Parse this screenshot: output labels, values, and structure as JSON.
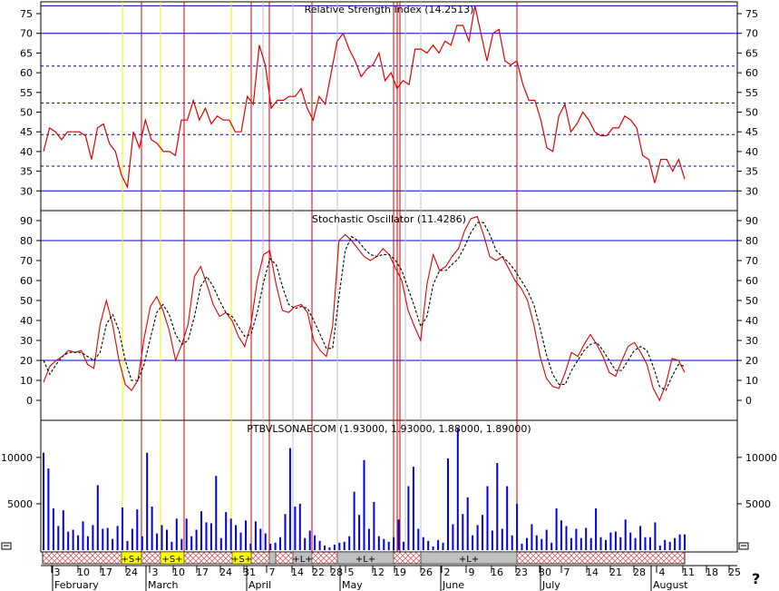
{
  "chart_data": [
    {
      "type": "line",
      "title": "Relative Strength Index (14.2513)",
      "ylim": [
        25,
        78
      ],
      "yticks": [
        30,
        35,
        40,
        45,
        50,
        55,
        60,
        65,
        70,
        75
      ],
      "reference_lines": {
        "solid": [
          77,
          70,
          30
        ],
        "dashed": [
          61.7,
          52.3,
          44.3,
          36.3
        ]
      },
      "series": [
        {
          "values": [
            40,
            46,
            45,
            43,
            45,
            45,
            45,
            44,
            38,
            46,
            47,
            42,
            40,
            34,
            31,
            45,
            41,
            48,
            43,
            42,
            40,
            40,
            39,
            48,
            48,
            53,
            48,
            51,
            47,
            49,
            48,
            48,
            45,
            45,
            54,
            52,
            67,
            62,
            51,
            53,
            53,
            54,
            54,
            56,
            51,
            48,
            54,
            52,
            60,
            68,
            70,
            66,
            63,
            59,
            61,
            62,
            65,
            58,
            60,
            56,
            58,
            57,
            66,
            66,
            65,
            67,
            65,
            68,
            67,
            72,
            72,
            68,
            77,
            70,
            63,
            70,
            71,
            63,
            62,
            63,
            57,
            53,
            53,
            48,
            41,
            40,
            49,
            52,
            45,
            47,
            50,
            48,
            45,
            44,
            44,
            46,
            46,
            49,
            48,
            46,
            39,
            38,
            32,
            38,
            38,
            35,
            38,
            33
          ]
        }
      ]
    },
    {
      "type": "line",
      "title": "Stochastic Oscillator (11.4286)",
      "ylim": [
        -10,
        95
      ],
      "yticks": [
        0,
        10,
        20,
        30,
        40,
        50,
        60,
        70,
        80,
        90
      ],
      "reference_lines": {
        "solid": [
          80,
          20
        ]
      },
      "series": [
        {
          "values": [
            9,
            17,
            20,
            22,
            25,
            24,
            25,
            18,
            16,
            38,
            50,
            38,
            20,
            8,
            5,
            10,
            31,
            47,
            52,
            45,
            35,
            20,
            28,
            38,
            62,
            67,
            58,
            48,
            42,
            44,
            40,
            32,
            27,
            38,
            60,
            73,
            75,
            58,
            45,
            44,
            47,
            48,
            44,
            30,
            25,
            22,
            37,
            80,
            83,
            80,
            76,
            72,
            70,
            72,
            76,
            73,
            66,
            60,
            45,
            37,
            30,
            58,
            73,
            65,
            67,
            72,
            76,
            85,
            91,
            92,
            83,
            72,
            70,
            72,
            66,
            60,
            56,
            50,
            38,
            22,
            11,
            7,
            6,
            14,
            24,
            22,
            28,
            33,
            28,
            22,
            14,
            12,
            20,
            27,
            29,
            24,
            18,
            6,
            0,
            8,
            21,
            20,
            14
          ]
        },
        {
          "values": [
            20,
            13,
            18,
            22,
            24,
            24,
            24,
            22,
            20,
            24,
            38,
            43,
            35,
            20,
            10,
            10,
            18,
            31,
            44,
            48,
            43,
            33,
            28,
            30,
            42,
            57,
            62,
            57,
            50,
            44,
            42,
            37,
            32,
            33,
            44,
            59,
            71,
            68,
            57,
            48,
            46,
            47,
            46,
            40,
            33,
            26,
            26,
            52,
            75,
            82,
            80,
            76,
            73,
            72,
            73,
            73,
            70,
            65,
            56,
            47,
            37,
            42,
            58,
            65,
            65,
            68,
            71,
            77,
            84,
            89,
            89,
            83,
            75,
            72,
            69,
            65,
            60,
            55,
            48,
            36,
            23,
            13,
            8,
            8,
            15,
            20,
            25,
            28,
            29,
            25,
            20,
            15,
            15,
            20,
            25,
            27,
            25,
            17,
            7,
            5,
            12,
            18,
            17
          ]
        }
      ]
    },
    {
      "type": "bar",
      "title": "PTBVLSONAECOM (1.93000, 1.93000, 1.88000, 1.89000)",
      "ylim": [
        0,
        14000
      ],
      "yticks": [
        5000,
        10000
      ],
      "values": [
        10500,
        8800,
        4500,
        2600,
        4300,
        2000,
        2200,
        1600,
        3100,
        1500,
        2700,
        7000,
        2300,
        2400,
        1200,
        2600,
        4600,
        1000,
        2300,
        4400,
        1500,
        10500,
        4700,
        1800,
        2700,
        2200,
        900,
        3400,
        1200,
        3400,
        1500,
        2200,
        4200,
        3000,
        2900,
        8000,
        1300,
        4100,
        3400,
        2700,
        1900,
        3200,
        700,
        3100,
        2300,
        1800,
        700,
        800,
        1400,
        3900,
        11000,
        4700,
        5000,
        1300,
        2100,
        1600,
        1000,
        500,
        300,
        600,
        800,
        900,
        1500,
        6300,
        3800,
        9700,
        2300,
        5200,
        1500,
        1200,
        900,
        1400,
        3300,
        900,
        6900,
        9000,
        2300,
        1400,
        1000,
        400,
        1100,
        800,
        9900,
        2800,
        13100,
        3900,
        5700,
        1600,
        2700,
        3800,
        6900,
        2100,
        9400,
        2300,
        6900,
        1600,
        5000,
        700,
        1300,
        2800,
        1600,
        1200,
        2200,
        800,
        4500,
        3200,
        2600,
        1300,
        2300,
        1300,
        2400,
        1300,
        4500,
        1400,
        1100,
        1900,
        2000,
        1400,
        3300,
        1900,
        1300,
        2600,
        1400,
        1400,
        3000,
        500,
        1100,
        900,
        1300,
        1700,
        1700
      ]
    }
  ],
  "band": {
    "short_labels": [
      "+S+",
      "+S+",
      "+S+"
    ],
    "long_labels": [
      "+L+",
      "+L+",
      "+L+"
    ]
  },
  "x_axis": {
    "day_ticks": [
      "3",
      "10",
      "17",
      "24",
      "3",
      "10",
      "17",
      "24",
      "31",
      "7",
      "14",
      "22",
      "28",
      "5",
      "12",
      "19",
      "26",
      "2",
      "9",
      "16",
      "23",
      "30",
      "7",
      "14",
      "21",
      "28",
      "4",
      "11",
      "18",
      "25"
    ],
    "months": [
      "February",
      "March",
      "April",
      "May",
      "June",
      "July",
      "August"
    ]
  },
  "corner_mark": "?",
  "colors": {
    "price_line": "#e00000",
    "volume_bar": "#0000e0",
    "ref_line": "#0000c0",
    "signal_red": "#cc0000",
    "signal_yellow": "#f0f000"
  }
}
